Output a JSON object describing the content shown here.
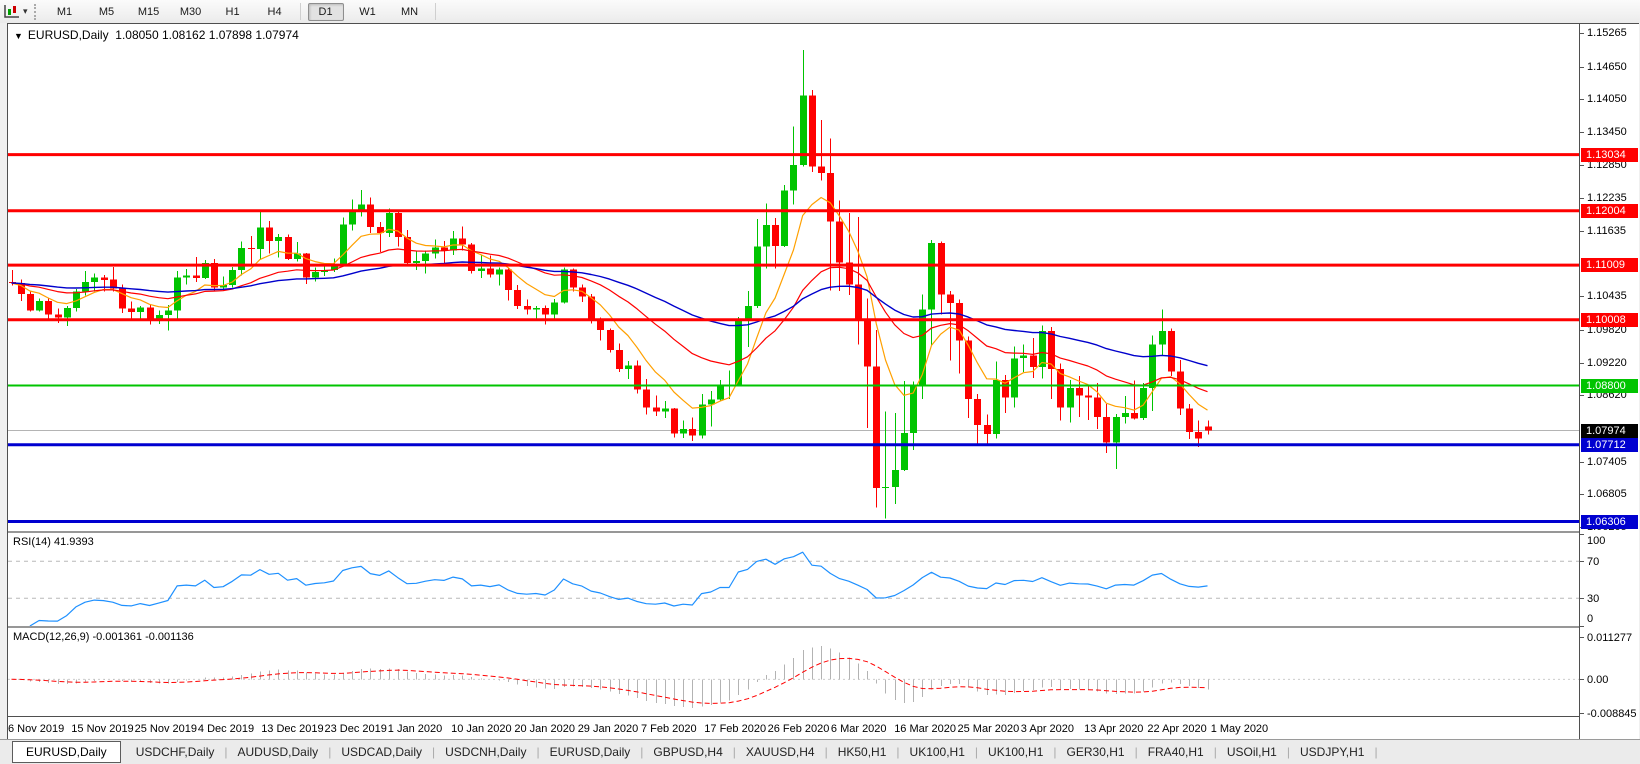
{
  "toolbar": {
    "timeframes": [
      "M1",
      "M5",
      "M15",
      "M30",
      "H1",
      "H4",
      "D1",
      "W1",
      "MN"
    ],
    "active_timeframe": "D1"
  },
  "chart_header": {
    "collapse_icon": "▼",
    "symbol": "EURUSD,Daily",
    "ohlc": "1.08050 1.08162 1.07898 1.07974"
  },
  "chart_data": {
    "type": "candlestick",
    "symbol": "EURUSD",
    "timeframe": "Daily",
    "title": "EURUSD,Daily",
    "ohlc_display": [
      "1.08050",
      "1.08162",
      "1.07898",
      "1.07974"
    ],
    "ylim": [
      1.06132,
      1.1543
    ],
    "y_ticks": [
      "1.15265",
      "1.14650",
      "1.14050",
      "1.13450",
      "1.12850",
      "1.12235",
      "1.11635",
      "1.10435",
      "1.09820",
      "1.09220",
      "1.08620",
      "1.07405",
      "1.06805",
      "1.06205"
    ],
    "current_price": 1.07974,
    "current_price_label": "1.07974",
    "colors": {
      "bull": "#00c400",
      "bear": "#ff0000",
      "current_price_line": "#b4b4b4"
    },
    "hlines": [
      {
        "price": 1.13034,
        "label": "1.13034",
        "color": "#ff0000",
        "width": 3
      },
      {
        "price": 1.12004,
        "label": "1.12004",
        "color": "#ff0000",
        "width": 3
      },
      {
        "price": 1.11009,
        "label": "1.11009",
        "color": "#ff0000",
        "width": 3
      },
      {
        "price": 1.10008,
        "label": "1.10008",
        "color": "#ff0000",
        "width": 3
      },
      {
        "price": 1.088,
        "label": "1.08800",
        "color": "#00c400",
        "width": 2
      },
      {
        "price": 1.07712,
        "label": "1.07712",
        "color": "#0000d0",
        "width": 3
      },
      {
        "price": 1.06306,
        "label": "1.06306",
        "color": "#0000d0",
        "width": 3
      }
    ],
    "moving_averages": [
      {
        "name": "ma-fast",
        "period": 8,
        "color": "#ffa000",
        "width": 1.2
      },
      {
        "name": "ma-medium",
        "period": 24,
        "color": "#ff0000",
        "width": 1.2
      },
      {
        "name": "ma-slow",
        "period": 55,
        "color": "#0000cc",
        "width": 1.4
      }
    ],
    "x_labels": [
      "6 Nov 2019",
      "15 Nov 2019",
      "25 Nov 2019",
      "4 Dec 2019",
      "13 Dec 2019",
      "23 Dec 2019",
      "1 Jan 2020",
      "10 Jan 2020",
      "20 Jan 2020",
      "29 Jan 2020",
      "7 Feb 2020",
      "17 Feb 2020",
      "26 Feb 2020",
      "6 Mar 2020",
      "16 Mar 2020",
      "25 Mar 2020",
      "3 Apr 2020",
      "13 Apr 2020",
      "22 Apr 2020",
      "1 May 2020"
    ],
    "candles": [
      [
        1.107,
        1.1092,
        1.1063,
        1.1068
      ],
      [
        1.1068,
        1.1074,
        1.1035,
        1.1048
      ],
      [
        1.1048,
        1.1052,
        1.1016,
        1.1018
      ],
      [
        1.1018,
        1.104,
        1.1016,
        1.1035
      ],
      [
        1.1035,
        1.104,
        1.1002,
        1.101
      ],
      [
        1.101,
        1.1021,
        1.0995,
        1.1005
      ],
      [
        1.1005,
        1.1026,
        1.0989,
        1.1022
      ],
      [
        1.1022,
        1.1057,
        1.1016,
        1.1052
      ],
      [
        1.1052,
        1.109,
        1.1045,
        1.107
      ],
      [
        1.107,
        1.1085,
        1.1052,
        1.1078
      ],
      [
        1.1078,
        1.1083,
        1.1052,
        1.1074
      ],
      [
        1.1074,
        1.1097,
        1.1052,
        1.1058
      ],
      [
        1.1058,
        1.1065,
        1.1013,
        1.1021
      ],
      [
        1.1021,
        1.1034,
        1.1003,
        1.1015
      ],
      [
        1.1015,
        1.1026,
        1.1001,
        1.1023
      ],
      [
        1.1023,
        1.1028,
        1.0992,
        1.1001
      ],
      [
        1.1001,
        1.1018,
        1.0993,
        1.1009
      ],
      [
        1.1009,
        1.1028,
        1.0981,
        1.1018
      ],
      [
        1.1018,
        1.109,
        1.1003,
        1.1078
      ],
      [
        1.1078,
        1.1094,
        1.1065,
        1.1082
      ],
      [
        1.1082,
        1.1116,
        1.107,
        1.1077
      ],
      [
        1.1077,
        1.111,
        1.1075,
        1.1105
      ],
      [
        1.1105,
        1.1112,
        1.1052,
        1.106
      ],
      [
        1.106,
        1.108,
        1.1055,
        1.1064
      ],
      [
        1.1064,
        1.1097,
        1.106,
        1.1092
      ],
      [
        1.1092,
        1.1144,
        1.1082,
        1.1132
      ],
      [
        1.1132,
        1.1154,
        1.1102,
        1.113
      ],
      [
        1.113,
        1.1199,
        1.1112,
        1.117
      ],
      [
        1.117,
        1.1182,
        1.1122,
        1.1145
      ],
      [
        1.1145,
        1.1158,
        1.1115,
        1.1152
      ],
      [
        1.1152,
        1.1157,
        1.111,
        1.1112
      ],
      [
        1.1112,
        1.1143,
        1.1107,
        1.1122
      ],
      [
        1.1122,
        1.1123,
        1.1066,
        1.1078
      ],
      [
        1.1078,
        1.1096,
        1.1071,
        1.1088
      ],
      [
        1.1088,
        1.1098,
        1.1081,
        1.1092
      ],
      [
        1.1092,
        1.1113,
        1.1088,
        1.1102
      ],
      [
        1.1102,
        1.1188,
        1.11,
        1.1175
      ],
      [
        1.1175,
        1.1221,
        1.1164,
        1.1199
      ],
      [
        1.1199,
        1.1239,
        1.119,
        1.1212
      ],
      [
        1.1212,
        1.1225,
        1.116,
        1.1171
      ],
      [
        1.1171,
        1.118,
        1.1125,
        1.116
      ],
      [
        1.116,
        1.1205,
        1.1152,
        1.1196
      ],
      [
        1.1196,
        1.1199,
        1.1135,
        1.1152
      ],
      [
        1.1152,
        1.1165,
        1.1103,
        1.1105
      ],
      [
        1.1105,
        1.1126,
        1.1092,
        1.1108
      ],
      [
        1.1108,
        1.1128,
        1.1085,
        1.1122
      ],
      [
        1.1122,
        1.1148,
        1.1113,
        1.1133
      ],
      [
        1.1133,
        1.1145,
        1.1105,
        1.1128
      ],
      [
        1.1128,
        1.1163,
        1.1119,
        1.115
      ],
      [
        1.115,
        1.1172,
        1.1128,
        1.1139
      ],
      [
        1.1139,
        1.1141,
        1.1085,
        1.109
      ],
      [
        1.109,
        1.1119,
        1.1077,
        1.1095
      ],
      [
        1.1095,
        1.1118,
        1.1078,
        1.1084
      ],
      [
        1.1084,
        1.1096,
        1.1063,
        1.1093
      ],
      [
        1.1093,
        1.1096,
        1.1036,
        1.1055
      ],
      [
        1.1055,
        1.1064,
        1.102,
        1.1026
      ],
      [
        1.1026,
        1.1038,
        1.101,
        1.1019
      ],
      [
        1.1019,
        1.1026,
        1.0998,
        1.1022
      ],
      [
        1.1022,
        1.1027,
        1.0992,
        1.101
      ],
      [
        1.101,
        1.1039,
        1.1003,
        1.1032
      ],
      [
        1.1032,
        1.1096,
        1.103,
        1.1093
      ],
      [
        1.1093,
        1.1095,
        1.1052,
        1.106
      ],
      [
        1.106,
        1.1065,
        1.1033,
        1.1043
      ],
      [
        1.1043,
        1.1048,
        1.0994,
        1.1
      ],
      [
        1.1,
        1.1005,
        1.0963,
        1.0982
      ],
      [
        1.0982,
        1.0985,
        1.0941,
        1.0945
      ],
      [
        1.0945,
        1.0957,
        1.0905,
        1.091
      ],
      [
        1.091,
        1.0925,
        1.0892,
        1.0917
      ],
      [
        1.0917,
        1.0926,
        1.0865,
        1.0873
      ],
      [
        1.0873,
        1.0892,
        1.0827,
        1.084
      ],
      [
        1.084,
        1.0862,
        1.0824,
        1.0832
      ],
      [
        1.0832,
        1.0852,
        1.082,
        1.0838
      ],
      [
        1.0838,
        1.0839,
        1.0785,
        1.0792
      ],
      [
        1.0792,
        1.0816,
        1.0784,
        1.08
      ],
      [
        1.08,
        1.0821,
        1.0778,
        1.0788
      ],
      [
        1.0788,
        1.0864,
        1.0783,
        1.0845
      ],
      [
        1.0845,
        1.087,
        1.0805,
        1.0854
      ],
      [
        1.0854,
        1.089,
        1.0852,
        1.088
      ],
      [
        1.088,
        1.0908,
        1.0855,
        1.088
      ],
      [
        1.088,
        1.1006,
        1.0878,
        1.0999
      ],
      [
        1.0999,
        1.1053,
        1.0951,
        1.1026
      ],
      [
        1.1026,
        1.1185,
        1.1022,
        1.1135
      ],
      [
        1.1135,
        1.1214,
        1.1095,
        1.1174
      ],
      [
        1.1174,
        1.1187,
        1.1095,
        1.1136
      ],
      [
        1.1136,
        1.1248,
        1.1134,
        1.1238
      ],
      [
        1.1238,
        1.1355,
        1.1212,
        1.1284
      ],
      [
        1.1284,
        1.1495,
        1.1282,
        1.1412
      ],
      [
        1.1412,
        1.1422,
        1.1272,
        1.1282
      ],
      [
        1.1282,
        1.1367,
        1.1256,
        1.127
      ],
      [
        1.127,
        1.1333,
        1.1054,
        1.1181
      ],
      [
        1.1181,
        1.1219,
        1.1053,
        1.1106
      ],
      [
        1.1106,
        1.1196,
        1.1046,
        1.1065
      ],
      [
        1.1065,
        1.1189,
        1.0955,
        1.0998
      ],
      [
        1.0998,
        1.104,
        1.0802,
        1.0915
      ],
      [
        1.0915,
        1.0982,
        1.0656,
        1.0692
      ],
      [
        1.0692,
        1.0832,
        1.0636,
        1.0694
      ],
      [
        1.0694,
        1.083,
        1.0663,
        1.0725
      ],
      [
        1.0725,
        1.0888,
        1.0723,
        1.0793
      ],
      [
        1.0793,
        1.0887,
        1.0762,
        1.088
      ],
      [
        1.088,
        1.1047,
        1.0855,
        1.1019
      ],
      [
        1.1019,
        1.1147,
        1.0953,
        1.1141
      ],
      [
        1.1141,
        1.1144,
        1.101,
        1.1047
      ],
      [
        1.1047,
        1.1053,
        1.0926,
        1.1031
      ],
      [
        1.1031,
        1.1038,
        1.0902,
        1.0963
      ],
      [
        1.0963,
        1.097,
        1.082,
        1.0855
      ],
      [
        1.0855,
        1.0864,
        1.0773,
        1.0808
      ],
      [
        1.0808,
        1.0827,
        1.077,
        1.0791
      ],
      [
        1.0791,
        1.0924,
        1.0783,
        1.089
      ],
      [
        1.089,
        1.0899,
        1.083,
        1.0858
      ],
      [
        1.0858,
        1.0952,
        1.084,
        1.093
      ],
      [
        1.093,
        1.0955,
        1.0905,
        1.0935
      ],
      [
        1.0935,
        1.0967,
        1.0894,
        1.0914
      ],
      [
        1.0914,
        1.099,
        1.0893,
        1.098
      ],
      [
        1.098,
        1.0987,
        1.0855,
        1.091
      ],
      [
        1.091,
        1.092,
        1.0816,
        1.084
      ],
      [
        1.084,
        1.089,
        1.0812,
        1.0875
      ],
      [
        1.0875,
        1.0897,
        1.0822,
        1.0862
      ],
      [
        1.0862,
        1.0878,
        1.0817,
        1.0858
      ],
      [
        1.0858,
        1.0885,
        1.08,
        1.0822
      ],
      [
        1.0822,
        1.0846,
        1.0756,
        1.0775
      ],
      [
        1.0775,
        1.0828,
        1.0727,
        1.0822
      ],
      [
        1.0822,
        1.0861,
        1.081,
        1.083
      ],
      [
        1.083,
        1.0889,
        1.0818,
        1.082
      ],
      [
        1.082,
        1.0885,
        1.0817,
        1.0875
      ],
      [
        1.0875,
        1.0972,
        1.0833,
        1.0955
      ],
      [
        1.0955,
        1.1019,
        1.0935,
        1.098
      ],
      [
        1.098,
        1.0985,
        1.0897,
        1.0906
      ],
      [
        1.0906,
        1.0927,
        1.0826,
        1.0838
      ],
      [
        1.0838,
        1.0846,
        1.0782,
        1.0795
      ],
      [
        1.0795,
        1.0816,
        1.0767,
        1.0783
      ],
      [
        1.0805,
        1.08162,
        1.07898,
        1.07974
      ]
    ],
    "rsi": {
      "label": "RSI(14) 41.9393",
      "period": 14,
      "value": 41.9393,
      "color": "#1e90ff",
      "levels": [
        70,
        30
      ],
      "range": [
        0,
        100
      ],
      "scale": [
        {
          "value": 100,
          "label": "100"
        },
        {
          "value": 70,
          "label": "70"
        },
        {
          "value": 30,
          "label": "30"
        },
        {
          "value": 0,
          "label": "0"
        }
      ]
    },
    "macd": {
      "label": "MACD(12,26,9) -0.001361 -0.001136",
      "fast": 12,
      "slow": 26,
      "signal": 9,
      "macd_value": -0.001361,
      "signal_value": -0.001136,
      "scale_max": 0.011277,
      "scale_min": -0.008845,
      "scale_labels": [
        "0.011277",
        "0.00",
        "-0.008845"
      ],
      "histogram_color": "#b3b3b3",
      "signal_color": "#ff0000"
    }
  },
  "tabs": [
    {
      "label": "EURUSD,Daily",
      "active": true
    },
    {
      "label": "USDCHF,Daily",
      "active": false
    },
    {
      "label": "AUDUSD,Daily",
      "active": false
    },
    {
      "label": "USDCAD,Daily",
      "active": false
    },
    {
      "label": "USDCNH,Daily",
      "active": false
    },
    {
      "label": "EURUSD,Daily",
      "active": false
    },
    {
      "label": "GBPUSD,H4",
      "active": false
    },
    {
      "label": "XAUUSD,H4",
      "active": false
    },
    {
      "label": "HK50,H1",
      "active": false
    },
    {
      "label": "UK100,H1",
      "active": false
    },
    {
      "label": "UK100,H1",
      "active": false
    },
    {
      "label": "GER30,H1",
      "active": false
    },
    {
      "label": "FRA40,H1",
      "active": false
    },
    {
      "label": "USOil,H1",
      "active": false
    },
    {
      "label": "USDJPY,H1",
      "active": false
    }
  ]
}
